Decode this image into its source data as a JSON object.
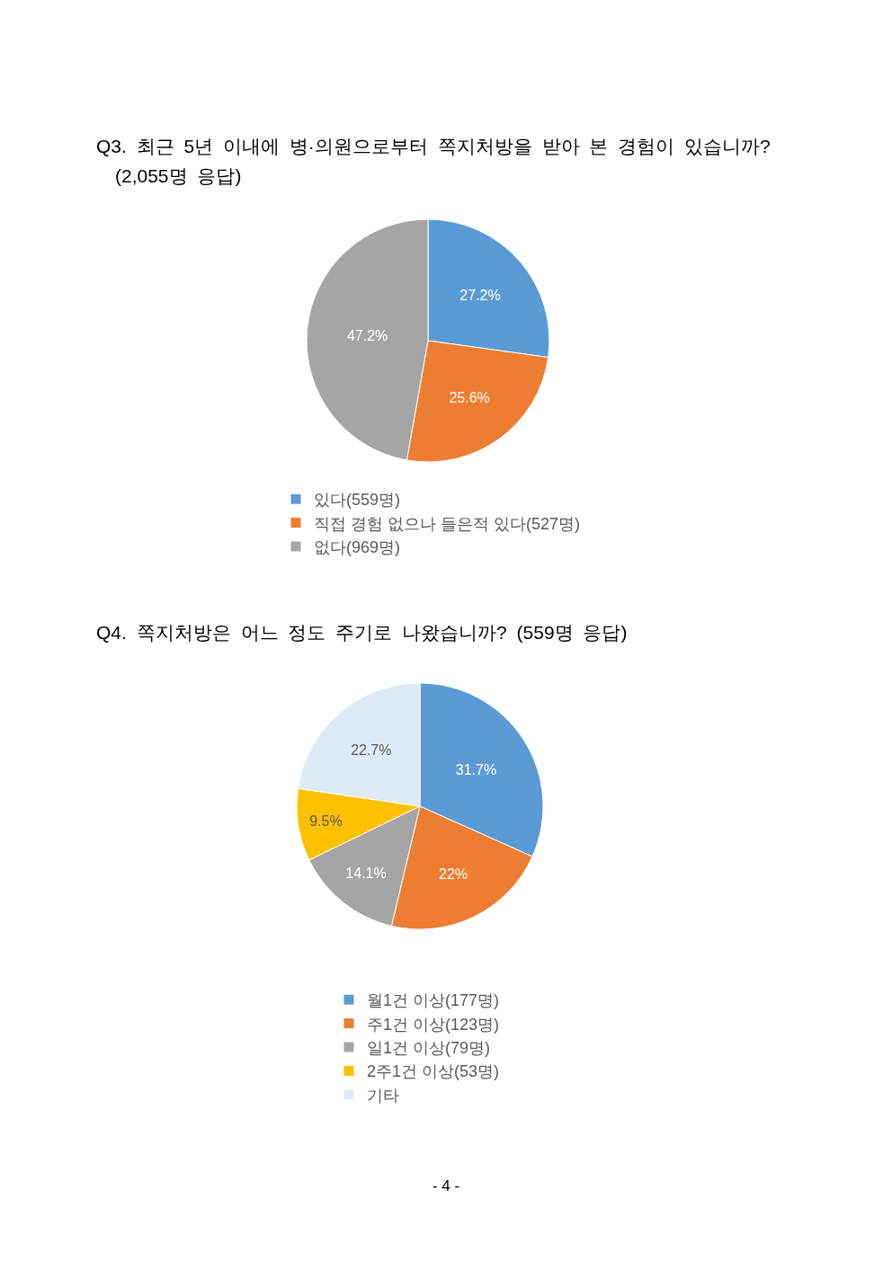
{
  "chart_data": [
    {
      "type": "pie",
      "title": "Q3. 최근 5년 이내에 병·의원으로부터 쪽지처방을 받아 본 경험이 있습니까?",
      "subtitle": "(2,055명 응답)",
      "categories": [
        "있다(559명)",
        "직접 경험 없으나 들은적 있다(527명)",
        "없다(969명)"
      ],
      "values": [
        27.2,
        25.6,
        47.2
      ],
      "colors": [
        "#5b9bd5",
        "#ed7d31",
        "#a5a5a5"
      ],
      "value_labels": [
        "27.2%",
        "25.6%",
        "47.2%"
      ],
      "legend": "bottom"
    },
    {
      "type": "pie",
      "title": "Q4. 쪽지처방은 어느 정도 주기로 나왔습니까? (559명 응답)",
      "categories": [
        "월1건 이상(177명)",
        "주1건 이상(123명)",
        "일1건 이상(79명)",
        "2주1건 이상(53명)",
        "기타"
      ],
      "values": [
        31.7,
        22,
        14.1,
        9.5,
        22.7
      ],
      "colors": [
        "#5b9bd5",
        "#ed7d31",
        "#a5a5a5",
        "#ffc000",
        "#deebf7"
      ],
      "value_labels": [
        "31.7%",
        "22%",
        "14.1%",
        "9.5%",
        "22.7%"
      ],
      "legend": "bottom",
      "annotations": [
        "- 4 -"
      ]
    }
  ]
}
